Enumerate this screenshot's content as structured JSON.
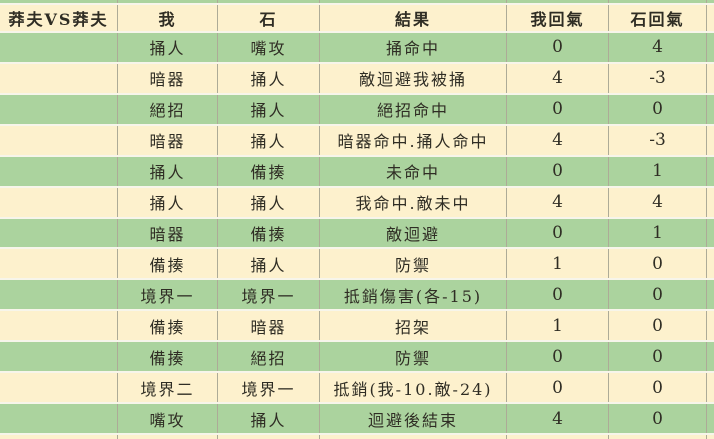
{
  "table": {
    "title_cell": "莽夫VS莽夫",
    "columns": [
      "莽夫VS莽夫",
      "我",
      "石",
      "結果",
      "我回氣",
      "石回氣"
    ],
    "rows": [
      [
        "捅人",
        "嘴攻",
        "捅命中",
        "0",
        "4"
      ],
      [
        "暗器",
        "捅人",
        "敵迴避我被捅",
        "4",
        "-3"
      ],
      [
        "絕招",
        "捅人",
        "絕招命中",
        "0",
        "0"
      ],
      [
        "暗器",
        "捅人",
        "暗器命中.捅人命中",
        "4",
        "-3"
      ],
      [
        "捅人",
        "備揍",
        "未命中",
        "0",
        "1"
      ],
      [
        "捅人",
        "捅人",
        "我命中.敵未中",
        "4",
        "4"
      ],
      [
        "暗器",
        "備揍",
        "敵迴避",
        "0",
        "1"
      ],
      [
        "備揍",
        "捅人",
        "防禦",
        "1",
        "0"
      ],
      [
        "境界一",
        "境界一",
        "抵銷傷害(各-15)",
        "0",
        "0"
      ],
      [
        "備揍",
        "暗器",
        "招架",
        "1",
        "0"
      ],
      [
        "備揍",
        "絕招",
        "防禦",
        "0",
        "0"
      ],
      [
        "境界二",
        "境界一",
        "抵銷(我-10.敵-24)",
        "0",
        "0"
      ],
      [
        "嘴攻",
        "捅人",
        "迴避後結束",
        "4",
        "0"
      ]
    ],
    "colors": {
      "row_green": "#abd39e",
      "row_cream": "#fdf1cd",
      "grid_line": "#adab97",
      "row_gap": "#f7f5ea",
      "text": "#2f2d24"
    }
  }
}
